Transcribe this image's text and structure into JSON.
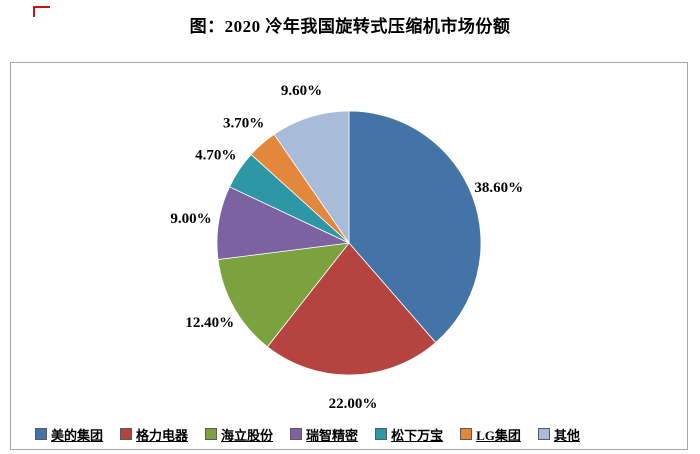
{
  "header": {
    "title": "图：2020 冷年我国旋转式压缩机市场份额"
  },
  "chart_data": {
    "type": "pie",
    "title": "图：2020 冷年我国旋转式压缩机市场份额",
    "unit": "percent",
    "start_angle_deg": 0,
    "direction": "clockwise",
    "legend_position": "bottom",
    "slices": [
      {
        "label": "美的集团",
        "value": 38.6,
        "display": "38.60%",
        "color": "#4473A8"
      },
      {
        "label": "格力电器",
        "value": 22.0,
        "display": "22.00%",
        "color": "#B5433F"
      },
      {
        "label": "海立股份",
        "value": 12.4,
        "display": "12.40%",
        "color": "#7BA23F"
      },
      {
        "label": "瑞智精密",
        "value": 9.0,
        "display": "9.00%",
        "color": "#7C62A1"
      },
      {
        "label": "松下万宝",
        "value": 4.7,
        "display": "4.70%",
        "color": "#2D97A5"
      },
      {
        "label": "LG集团",
        "value": 3.7,
        "display": "3.70%",
        "color": "#E2873C"
      },
      {
        "label": "其他",
        "value": 9.6,
        "display": "9.60%",
        "color": "#A8BCD9"
      }
    ]
  }
}
